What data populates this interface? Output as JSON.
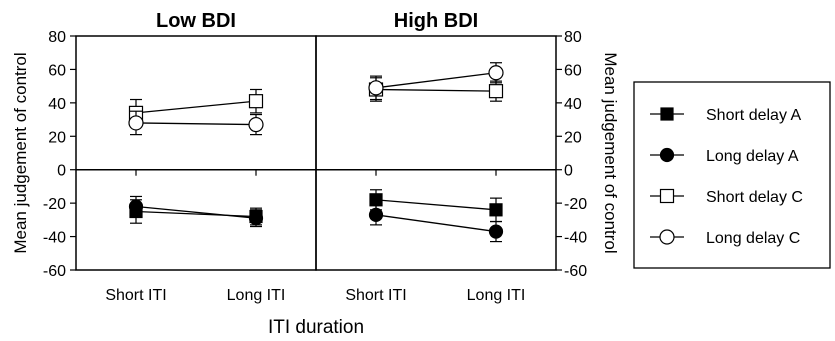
{
  "chart_data": {
    "type": "line",
    "xlabel": "ITI duration",
    "ylabel": "Mean judgement of control",
    "ylabel_right": "Mean judgement of control",
    "ylim": [
      -60,
      80
    ],
    "yticks": [
      -60,
      -40,
      -20,
      0,
      20,
      40,
      60,
      80
    ],
    "categories": [
      "Short ITI",
      "Long ITI"
    ],
    "panels": [
      {
        "title": "Low BDI",
        "series": [
          {
            "name": "Short delay A",
            "values": [
              -25,
              -28
            ],
            "errors": [
              7,
              5
            ]
          },
          {
            "name": "Long delay A",
            "values": [
              -22,
              -29
            ],
            "errors": [
              6,
              5
            ]
          },
          {
            "name": "Short delay C",
            "values": [
              34,
              41
            ],
            "errors": [
              8,
              7
            ]
          },
          {
            "name": "Long delay C",
            "values": [
              28,
              27
            ],
            "errors": [
              7,
              6
            ]
          }
        ]
      },
      {
        "title": "High BDI",
        "series": [
          {
            "name": "Short delay A",
            "values": [
              -18,
              -24
            ],
            "errors": [
              6,
              7
            ]
          },
          {
            "name": "Long delay A",
            "values": [
              -27,
              -37
            ],
            "errors": [
              6,
              6
            ]
          },
          {
            "name": "Short delay C",
            "values": [
              48,
              47
            ],
            "errors": [
              7,
              6
            ]
          },
          {
            "name": "Long delay C",
            "values": [
              49,
              58
            ],
            "errors": [
              7,
              6
            ]
          }
        ]
      }
    ],
    "legend": {
      "placement": "right",
      "entries": [
        {
          "name": "Short delay A",
          "marker": "square-filled"
        },
        {
          "name": "Long delay A",
          "marker": "circle-filled"
        },
        {
          "name": "Short delay C",
          "marker": "square-open"
        },
        {
          "name": "Long delay C",
          "marker": "circle-open"
        }
      ]
    }
  }
}
